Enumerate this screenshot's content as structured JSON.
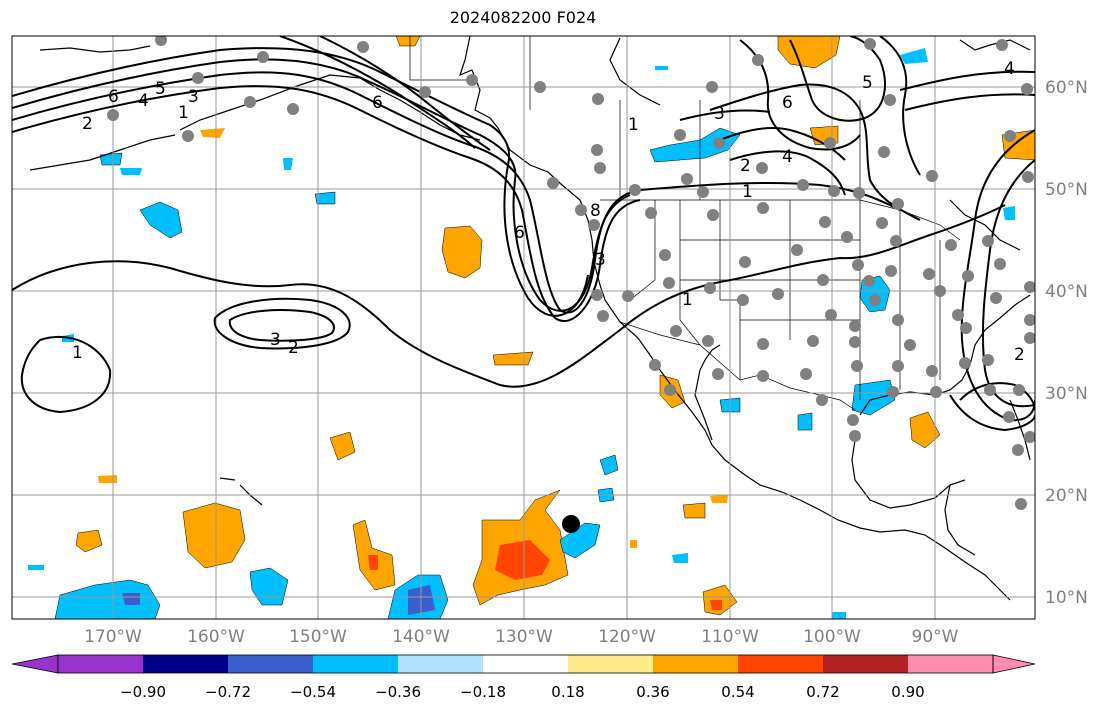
{
  "title": "2024082200 F024",
  "map": {
    "projection": "plate-carree",
    "lon_range": [
      -180,
      -80
    ],
    "lat_range": [
      8,
      65
    ],
    "gridlines": true,
    "lon_ticks": [
      "170°W",
      "160°W",
      "150°W",
      "140°W",
      "130°W",
      "120°W",
      "110°W",
      "100°W",
      "90°W"
    ],
    "lat_ticks": [
      "60°N",
      "50°N",
      "40°N",
      "30°N",
      "20°N",
      "10°N"
    ],
    "land_color": "#ffffff",
    "coast_color": "#000000",
    "grid_color": "#999999",
    "tick_label_color": "#808080"
  },
  "contour_labels": [
    "6",
    "4",
    "2",
    "1",
    "5",
    "3",
    "6",
    "1",
    "3",
    "6",
    "2",
    "4",
    "1",
    "5",
    "4",
    "6",
    "8",
    "3",
    "1",
    "3",
    "2",
    "1",
    "2"
  ],
  "colorbar": {
    "ticks": [
      "−0.90",
      "−0.72",
      "−0.54",
      "−0.36",
      "−0.18",
      "0.18",
      "0.36",
      "0.54",
      "0.72",
      "0.90"
    ],
    "colors": [
      "#9932cc",
      "#00008b",
      "#3a5fcd",
      "#00bfff",
      "#b0e2ff",
      "#ffffff",
      "#ffec8b",
      "#ffa500",
      "#ff4500",
      "#b22222",
      "#ff8bb0"
    ]
  },
  "marker": {
    "label": "storm-center",
    "color": "#000000"
  }
}
